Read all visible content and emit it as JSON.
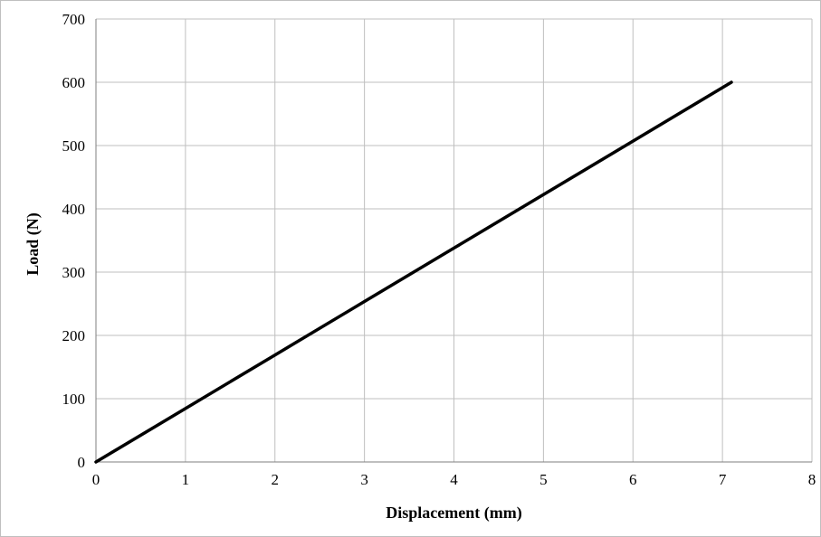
{
  "chart_data": {
    "type": "line",
    "title": "",
    "xlabel": "Displacement (mm)",
    "ylabel": "Load (N)",
    "xlim": [
      0,
      8
    ],
    "ylim": [
      0,
      700
    ],
    "x_ticks": [
      "0",
      "1",
      "2",
      "3",
      "4",
      "5",
      "6",
      "7",
      "8"
    ],
    "y_ticks": [
      "0",
      "100",
      "200",
      "300",
      "400",
      "500",
      "600",
      "700"
    ],
    "grid": true,
    "legend": "none",
    "series": [
      {
        "color": "#000000",
        "x": [
          0,
          1,
          2,
          3,
          4,
          5,
          6,
          7.1
        ],
        "y": [
          0,
          84.5,
          169,
          253.5,
          338,
          422.5,
          507,
          600
        ]
      }
    ]
  }
}
